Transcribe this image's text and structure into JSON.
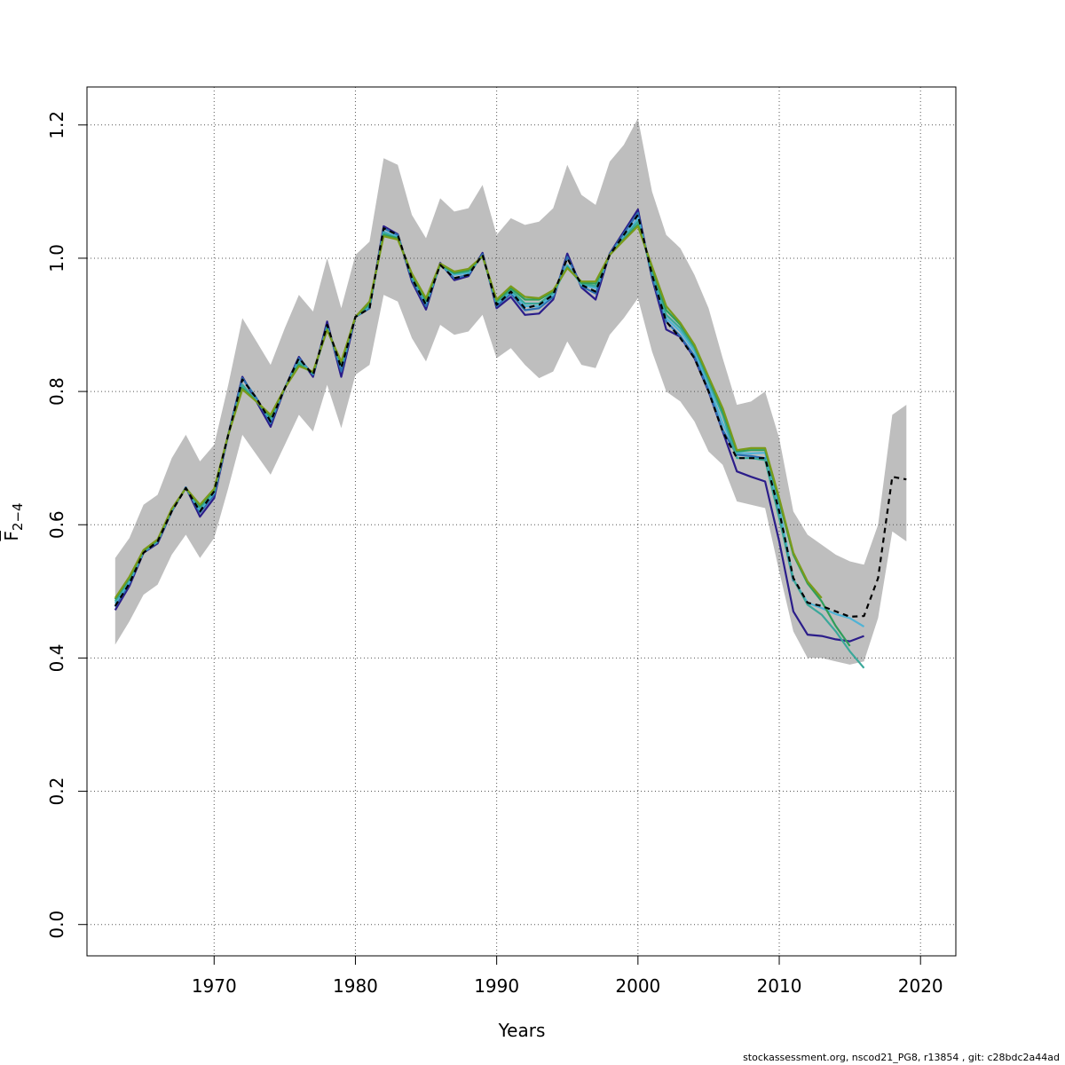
{
  "chart_data": {
    "type": "line",
    "xlabel": "Years",
    "ylabel": {
      "main": "F",
      "sub": "2−4"
    },
    "xlim": [
      1961.0,
      2022.5
    ],
    "ylim": [
      -0.047,
      1.257
    ],
    "xticks": [
      1970,
      1980,
      1990,
      2000,
      2010,
      2020
    ],
    "yticks": [
      0.0,
      0.2,
      0.4,
      0.6,
      0.8,
      1.0,
      1.2
    ],
    "xtick_labels": [
      "1970",
      "1980",
      "1990",
      "2000",
      "2010",
      "2020"
    ],
    "ytick_labels": [
      "0.0",
      "0.2",
      "0.4",
      "0.6",
      "0.8",
      "1.0",
      "1.2"
    ],
    "grid": true,
    "legend": "none",
    "band": {
      "color": "#bebebe",
      "x": [
        1963,
        1964,
        1965,
        1966,
        1967,
        1968,
        1969,
        1970,
        1971,
        1972,
        1973,
        1974,
        1975,
        1976,
        1977,
        1978,
        1979,
        1980,
        1981,
        1982,
        1983,
        1984,
        1985,
        1986,
        1987,
        1988,
        1989,
        1990,
        1991,
        1992,
        1993,
        1994,
        1995,
        1996,
        1997,
        1998,
        1999,
        2000,
        2001,
        2002,
        2003,
        2004,
        2005,
        2006,
        2007,
        2008,
        2009,
        2010,
        2011,
        2012,
        2013,
        2014,
        2015,
        2016,
        2017,
        2018,
        2019
      ],
      "upper": [
        0.55,
        0.58,
        0.63,
        0.645,
        0.7,
        0.735,
        0.695,
        0.72,
        0.81,
        0.91,
        0.875,
        0.84,
        0.895,
        0.945,
        0.92,
        1.0,
        0.925,
        1.005,
        1.025,
        1.15,
        1.14,
        1.065,
        1.03,
        1.09,
        1.07,
        1.075,
        1.11,
        1.035,
        1.06,
        1.05,
        1.055,
        1.075,
        1.14,
        1.095,
        1.08,
        1.145,
        1.17,
        1.21,
        1.1,
        1.035,
        1.015,
        0.975,
        0.925,
        0.85,
        0.78,
        0.785,
        0.8,
        0.73,
        0.62,
        0.585,
        0.57,
        0.555,
        0.545,
        0.54,
        0.6,
        0.765,
        0.78
      ],
      "lower": [
        0.42,
        0.455,
        0.495,
        0.51,
        0.555,
        0.585,
        0.55,
        0.58,
        0.655,
        0.735,
        0.705,
        0.675,
        0.72,
        0.765,
        0.74,
        0.81,
        0.745,
        0.825,
        0.84,
        0.945,
        0.935,
        0.88,
        0.845,
        0.9,
        0.885,
        0.89,
        0.915,
        0.85,
        0.865,
        0.84,
        0.82,
        0.83,
        0.875,
        0.84,
        0.835,
        0.885,
        0.91,
        0.94,
        0.86,
        0.8,
        0.785,
        0.755,
        0.71,
        0.69,
        0.635,
        0.63,
        0.625,
        0.53,
        0.44,
        0.4,
        0.4,
        0.395,
        0.39,
        0.395,
        0.46,
        0.59,
        0.575
      ]
    },
    "series": [
      {
        "color": "#000000",
        "dash": "6,5",
        "start": 1963,
        "values": [
          0.478,
          0.512,
          0.558,
          0.575,
          0.62,
          0.655,
          0.62,
          0.65,
          0.735,
          0.818,
          0.79,
          0.755,
          0.805,
          0.85,
          0.825,
          0.9,
          0.835,
          0.912,
          0.925,
          1.045,
          1.035,
          0.97,
          0.93,
          0.99,
          0.97,
          0.975,
          1.005,
          0.93,
          0.95,
          0.925,
          0.93,
          0.945,
          1.0,
          0.96,
          0.95,
          1.005,
          1.035,
          1.065,
          0.975,
          0.905,
          0.88,
          0.85,
          0.8,
          0.74,
          0.7,
          0.7,
          0.7,
          0.62,
          0.52,
          0.483,
          0.478,
          0.47,
          0.462,
          0.463,
          0.52,
          0.672,
          0.668
        ]
      },
      {
        "color": "#2b1d8a",
        "dash": "",
        "start": 1963,
        "values": [
          0.472,
          0.508,
          0.558,
          0.572,
          0.62,
          0.656,
          0.612,
          0.64,
          0.735,
          0.822,
          0.785,
          0.747,
          0.805,
          0.852,
          0.822,
          0.905,
          0.822,
          0.912,
          0.925,
          1.048,
          1.036,
          0.965,
          0.923,
          0.993,
          0.967,
          0.973,
          1.008,
          0.925,
          0.942,
          0.915,
          0.917,
          0.938,
          1.007,
          0.956,
          0.938,
          1.007,
          1.04,
          1.073,
          0.97,
          0.893,
          0.882,
          0.85,
          0.8,
          0.74,
          0.68,
          0.672,
          0.665,
          0.575,
          0.47,
          0.435,
          0.433,
          0.428,
          0.425,
          0.433
        ]
      },
      {
        "color": "#2a6fb0",
        "dash": "",
        "start": 1963,
        "values": [
          0.477,
          0.512,
          0.558,
          0.574,
          0.62,
          0.656,
          0.618,
          0.645,
          0.735,
          0.82,
          0.79,
          0.752,
          0.805,
          0.85,
          0.825,
          0.9,
          0.83,
          0.912,
          0.925,
          1.045,
          1.035,
          0.968,
          0.928,
          0.991,
          0.97,
          0.975,
          1.006,
          0.928,
          0.947,
          0.922,
          0.925,
          0.942,
          1.002,
          0.958,
          0.947,
          1.006,
          1.037,
          1.068,
          0.972,
          0.905,
          0.883,
          0.853,
          0.802,
          0.742,
          0.705,
          0.703,
          0.7,
          0.612,
          0.515
        ]
      },
      {
        "color": "#4fb3d6",
        "dash": "",
        "start": 1963,
        "values": [
          0.482,
          0.515,
          0.56,
          0.575,
          0.622,
          0.655,
          0.622,
          0.648,
          0.735,
          0.81,
          0.786,
          0.758,
          0.805,
          0.845,
          0.827,
          0.895,
          0.838,
          0.912,
          0.928,
          1.04,
          1.032,
          0.972,
          0.933,
          0.99,
          0.975,
          0.978,
          1.004,
          0.932,
          0.95,
          0.928,
          0.928,
          0.945,
          0.99,
          0.96,
          0.955,
          1.005,
          1.032,
          1.06,
          0.98,
          0.91,
          0.89,
          0.86,
          0.81,
          0.752,
          0.708,
          0.707,
          0.708,
          0.625,
          0.518,
          0.483,
          0.475,
          0.466,
          0.46,
          0.447
        ]
      },
      {
        "color": "#3aa89a",
        "dash": "",
        "start": 1963,
        "values": [
          0.485,
          0.518,
          0.56,
          0.576,
          0.622,
          0.655,
          0.625,
          0.65,
          0.735,
          0.81,
          0.785,
          0.76,
          0.805,
          0.843,
          0.827,
          0.895,
          0.84,
          0.912,
          0.93,
          1.038,
          1.03,
          0.973,
          0.935,
          0.99,
          0.977,
          0.98,
          1.003,
          0.934,
          0.952,
          0.932,
          0.932,
          0.948,
          0.988,
          0.962,
          0.958,
          1.005,
          1.03,
          1.055,
          0.98,
          0.915,
          0.895,
          0.865,
          0.815,
          0.765,
          0.7,
          0.7,
          0.697,
          0.61,
          0.518,
          0.48,
          0.465,
          0.44,
          0.41,
          0.385
        ]
      },
      {
        "color": "#2e9e5a",
        "dash": "",
        "start": 1963,
        "values": [
          0.488,
          0.52,
          0.561,
          0.577,
          0.623,
          0.655,
          0.628,
          0.652,
          0.735,
          0.805,
          0.785,
          0.762,
          0.805,
          0.84,
          0.828,
          0.893,
          0.842,
          0.912,
          0.932,
          1.035,
          1.03,
          0.975,
          0.937,
          0.991,
          0.978,
          0.982,
          1.003,
          0.936,
          0.955,
          0.938,
          0.938,
          0.95,
          0.986,
          0.963,
          0.962,
          1.005,
          1.028,
          1.05,
          0.985,
          0.922,
          0.9,
          0.868,
          0.82,
          0.77,
          0.71,
          0.712,
          0.712,
          0.635,
          0.555,
          0.512,
          0.485,
          0.448,
          0.418
        ]
      },
      {
        "color": "#7a9a1a",
        "dash": "",
        "start": 1963,
        "values": [
          0.49,
          0.522,
          0.562,
          0.578,
          0.624,
          0.655,
          0.63,
          0.654,
          0.735,
          0.803,
          0.785,
          0.765,
          0.805,
          0.838,
          0.83,
          0.892,
          0.845,
          0.912,
          0.935,
          1.033,
          1.028,
          0.977,
          0.94,
          0.992,
          0.98,
          0.984,
          1.003,
          0.938,
          0.958,
          0.942,
          0.94,
          0.952,
          0.985,
          0.965,
          0.965,
          1.005,
          1.027,
          1.048,
          0.988,
          0.928,
          0.903,
          0.87,
          0.822,
          0.775,
          0.712,
          0.715,
          0.715,
          0.64,
          0.558,
          0.515,
          0.49
        ]
      }
    ]
  },
  "footer": {
    "credit": "stockassessment.org, nscod21_PG8, r13854 , git: c28bdc2a44ad"
  }
}
